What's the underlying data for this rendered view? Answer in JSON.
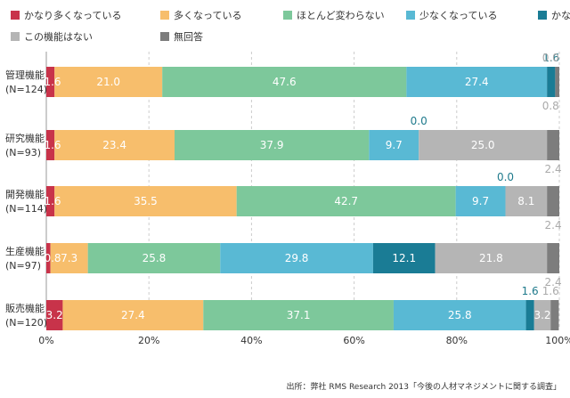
{
  "chart_data": {
    "type": "bar",
    "orientation": "horizontal",
    "stacked": true,
    "categories": [
      "管理機能\n(N=124)",
      "研究機能\n(N=93)",
      "開発機能\n(N=114)",
      "生産機能\n(N=97)",
      "販売機能\n(N=120)"
    ],
    "series": [
      {
        "name": "かなり多くなっている",
        "color": "#c8334a",
        "values": [
          1.6,
          1.6,
          1.6,
          0.8,
          3.2
        ]
      },
      {
        "name": "多くなっている",
        "color": "#f7be6c",
        "values": [
          21.0,
          23.4,
          35.5,
          7.3,
          27.4
        ]
      },
      {
        "name": "ほとんど変わらない",
        "color": "#7dc89b",
        "values": [
          47.6,
          37.9,
          42.7,
          25.8,
          37.1
        ]
      },
      {
        "name": "少なくなっている",
        "color": "#59b9d4",
        "values": [
          27.4,
          9.7,
          9.7,
          29.8,
          25.8
        ]
      },
      {
        "name": "かなり少なくなっている",
        "color": "#1a7c95",
        "values": [
          1.6,
          0.0,
          0.0,
          12.1,
          1.6
        ]
      },
      {
        "name": "この機能はない",
        "color": "#b5b5b5",
        "values": [
          0.0,
          25.0,
          8.1,
          21.8,
          3.2
        ]
      },
      {
        "name": "無回答",
        "color": "#7d7d7d",
        "values": [
          0.8,
          2.4,
          2.4,
          2.4,
          1.6
        ]
      }
    ],
    "xlim": [
      0,
      100
    ],
    "xticks": [
      "0%",
      "20%",
      "40%",
      "60%",
      "80%",
      "100%"
    ],
    "grid": true,
    "legend_position": "top",
    "source": "出所：弊社 RMS Research 2013「今後の人材マネジメントに関する調査」"
  }
}
